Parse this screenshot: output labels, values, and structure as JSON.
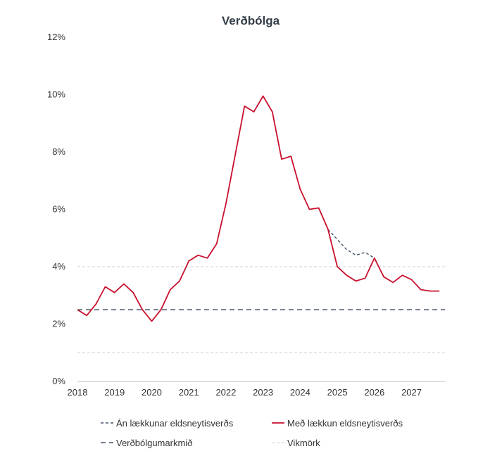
{
  "chart_data": {
    "type": "line",
    "title": "Verðbólga",
    "xlabel": "",
    "ylabel": "",
    "xlim": [
      2018,
      2027.9
    ],
    "ylim": [
      0,
      12
    ],
    "x_ticks": [
      "2018",
      "2019",
      "2020",
      "2021",
      "2022",
      "2023",
      "2024",
      "2025",
      "2026",
      "2027"
    ],
    "y_ticks": [
      "0%",
      "2%",
      "4%",
      "6%",
      "8%",
      "10%",
      "12%"
    ],
    "grid": false,
    "legend_position": "bottom",
    "series": [
      {
        "name": "Með lækkun eldsneytisverðs",
        "color": "#c8102e",
        "style": "solid",
        "x": [
          2018.0,
          2018.25,
          2018.5,
          2018.75,
          2019.0,
          2019.25,
          2019.5,
          2019.75,
          2020.0,
          2020.25,
          2020.5,
          2020.75,
          2021.0,
          2021.25,
          2021.5,
          2021.75,
          2022.0,
          2022.25,
          2022.5,
          2022.75,
          2023.0,
          2023.25,
          2023.5,
          2023.75,
          2024.0,
          2024.25,
          2024.5,
          2024.75,
          2025.0,
          2025.25,
          2025.5,
          2025.75,
          2026.0,
          2026.25,
          2026.5,
          2026.75,
          2027.0,
          2027.25,
          2027.5,
          2027.75
        ],
        "y": [
          2.5,
          2.3,
          2.7,
          3.3,
          3.1,
          3.4,
          3.1,
          2.5,
          2.1,
          2.5,
          3.2,
          3.5,
          4.2,
          4.4,
          4.3,
          4.8,
          6.2,
          7.9,
          9.6,
          9.4,
          9.95,
          9.4,
          7.75,
          7.85,
          6.7,
          6.0,
          6.05,
          5.3,
          4.0,
          3.7,
          3.5,
          3.6,
          4.3,
          3.65,
          3.45,
          3.7,
          3.55,
          3.2,
          3.15,
          3.15
        ]
      },
      {
        "name": "Án lækkunar eldsneytisverðs",
        "color": "#44546a",
        "style": "dashed",
        "x": [
          2024.75,
          2025.0,
          2025.25,
          2025.5,
          2025.75,
          2026.0
        ],
        "y": [
          5.3,
          4.95,
          4.6,
          4.4,
          4.5,
          4.3
        ]
      },
      {
        "name": "Verðbólgumarkmið",
        "color": "#44546a",
        "style": "long-dashed",
        "x": [
          2018,
          2027.9
        ],
        "y": [
          2.5,
          2.5
        ]
      },
      {
        "name": "Vikmörk",
        "color": "#d9d9d9",
        "style": "dashed",
        "bands": [
          1,
          4
        ]
      }
    ]
  }
}
